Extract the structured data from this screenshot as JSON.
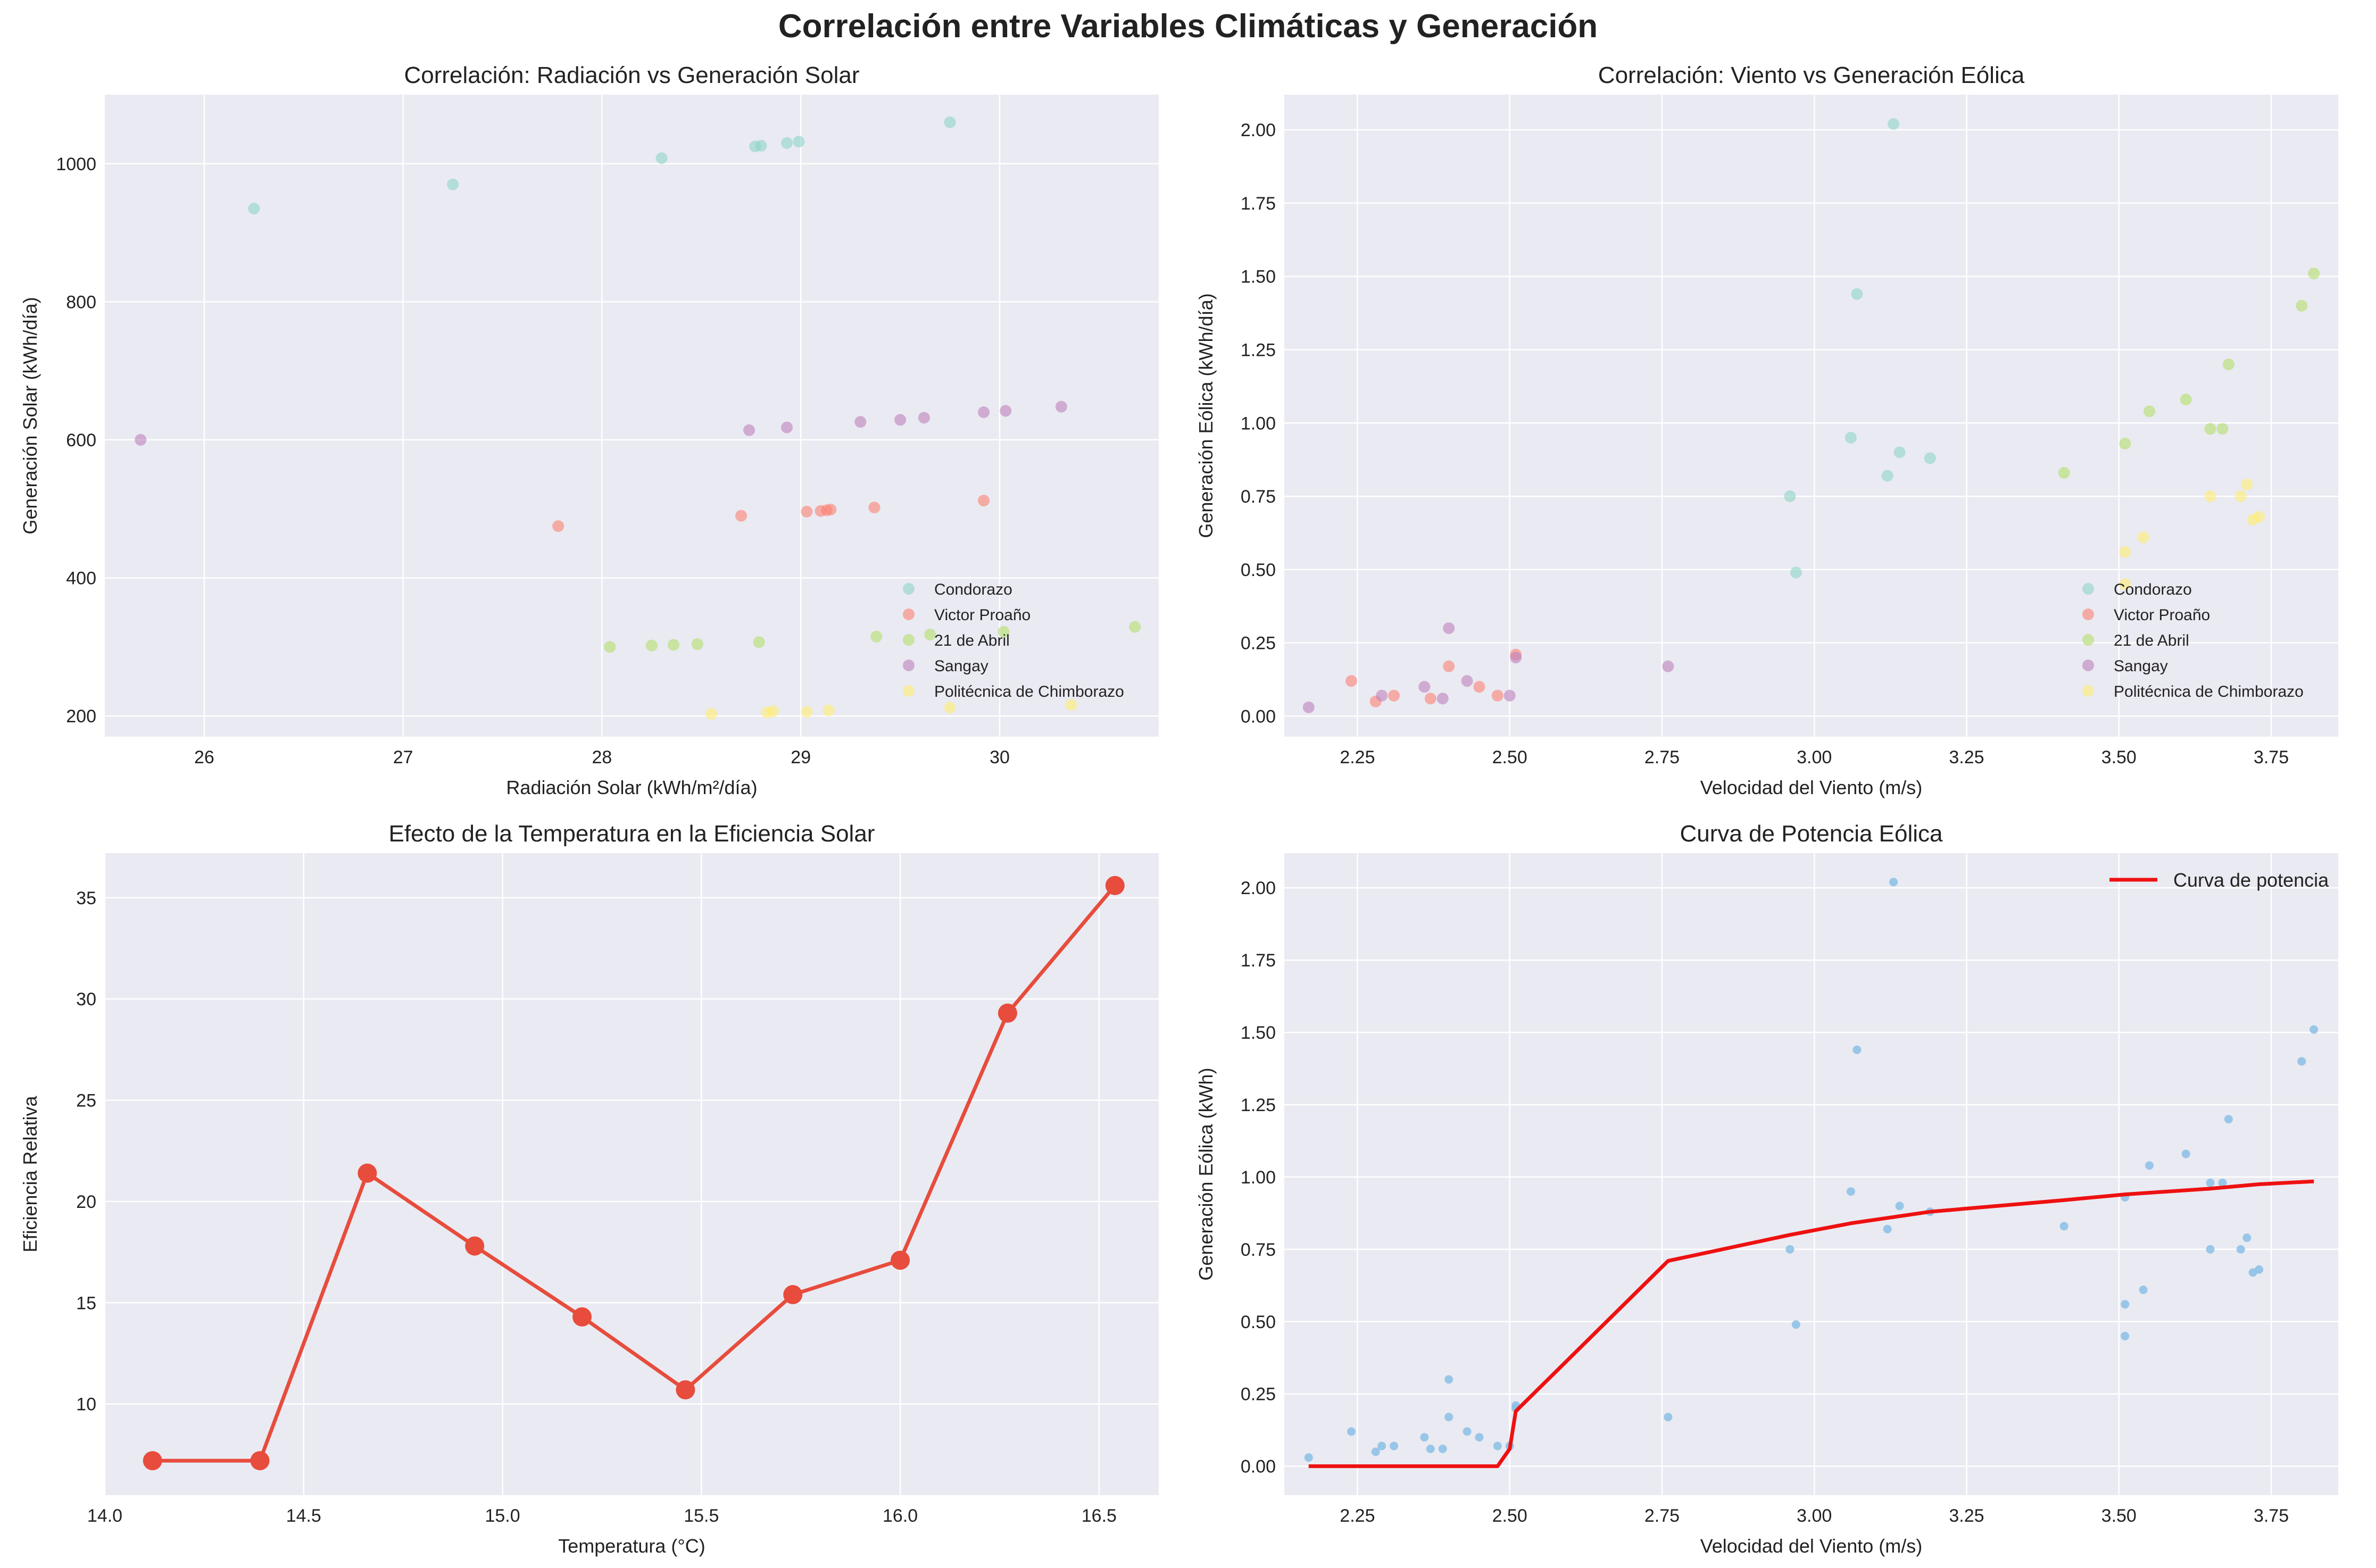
{
  "title": "Correlación entre Variables Climáticas y Generación",
  "colors": {
    "panel_bg": "#eaeaf2",
    "grid": "#ffffff",
    "text": "#222222",
    "Condorazo": "#8dd3c7",
    "Victor Proaño": "#fb8072",
    "21 de Abril": "#b3de69",
    "Sangay": "#bc80bd",
    "Politécnica de Chimborazo": "#ffed6f",
    "efficiency_line": "#e74c3c",
    "power_curve": "#ee1111",
    "scatter_blue": "#89bfe6"
  },
  "chart_data": [
    {
      "type": "scatter",
      "title": "Correlación: Radiación vs Generación Solar",
      "xlabel": "Radiación Solar (kWh/m²/día)",
      "ylabel": "Generación Solar (kWh/día)",
      "xlim": [
        25.5,
        30.8
      ],
      "ylim": [
        170,
        1100
      ],
      "xticks": [
        26,
        27,
        28,
        29,
        30
      ],
      "yticks": [
        200,
        400,
        600,
        800,
        1000
      ],
      "xtick_labels": [
        "26",
        "27",
        "28",
        "29",
        "30"
      ],
      "ytick_labels": [
        "200",
        "400",
        "600",
        "800",
        "1000"
      ],
      "grid": true,
      "legend_position": "bottom-right",
      "series": [
        {
          "name": "Condorazo",
          "x": [
            26.25,
            27.25,
            28.3,
            28.77,
            28.8,
            28.93,
            28.99,
            29.75
          ],
          "y": [
            935,
            970,
            1008,
            1025,
            1026,
            1030,
            1032,
            1060
          ]
        },
        {
          "name": "Victor Proaño",
          "x": [
            27.78,
            28.7,
            29.03,
            29.1,
            29.13,
            29.15,
            29.37,
            29.92
          ],
          "y": [
            475,
            490,
            496,
            497,
            498,
            499,
            502,
            512
          ]
        },
        {
          "name": "21 de Abril",
          "x": [
            28.04,
            28.25,
            28.36,
            28.48,
            28.79,
            29.38,
            29.65,
            30.02,
            30.68
          ],
          "y": [
            300,
            302,
            303,
            304,
            307,
            315,
            318,
            322,
            329
          ]
        },
        {
          "name": "Sangay",
          "x": [
            25.68,
            28.74,
            28.93,
            29.3,
            29.5,
            29.62,
            29.92,
            30.03,
            30.31
          ],
          "y": [
            600,
            614,
            618,
            626,
            629,
            632,
            640,
            642,
            648
          ]
        },
        {
          "name": "Politécnica de Chimborazo",
          "x": [
            28.55,
            28.83,
            28.86,
            29.03,
            29.14,
            29.75,
            30.36
          ],
          "y": [
            203,
            205,
            207,
            206,
            208,
            212,
            216
          ]
        }
      ]
    },
    {
      "type": "scatter",
      "title": "Correlación: Viento vs Generación Eólica",
      "xlabel": "Velocidad del Viento (m/s)",
      "ylabel": "Generación Eólica (kWh/día)",
      "xlim": [
        2.13,
        3.86
      ],
      "ylim": [
        -0.07,
        2.12
      ],
      "xticks": [
        2.25,
        2.5,
        2.75,
        3.0,
        3.25,
        3.5,
        3.75
      ],
      "yticks": [
        0.0,
        0.25,
        0.5,
        0.75,
        1.0,
        1.25,
        1.5,
        1.75,
        2.0
      ],
      "xtick_labels": [
        "2.25",
        "2.50",
        "2.75",
        "3.00",
        "3.25",
        "3.50",
        "3.75"
      ],
      "ytick_labels": [
        "0.00",
        "0.25",
        "0.50",
        "0.75",
        "1.00",
        "1.25",
        "1.50",
        "1.75",
        "2.00"
      ],
      "grid": true,
      "legend_position": "bottom-right",
      "series": [
        {
          "name": "Condorazo",
          "x": [
            2.96,
            2.97,
            3.06,
            3.07,
            3.12,
            3.13,
            3.14,
            3.19
          ],
          "y": [
            0.75,
            0.49,
            0.95,
            1.44,
            0.82,
            2.02,
            0.9,
            0.88
          ]
        },
        {
          "name": "Victor Proaño",
          "x": [
            2.24,
            2.28,
            2.31,
            2.37,
            2.4,
            2.45,
            2.48,
            2.51
          ],
          "y": [
            0.12,
            0.05,
            0.07,
            0.06,
            0.17,
            0.1,
            0.07,
            0.21
          ]
        },
        {
          "name": "21 de Abril",
          "x": [
            3.41,
            3.51,
            3.55,
            3.61,
            3.65,
            3.67,
            3.68,
            3.8,
            3.82
          ],
          "y": [
            0.83,
            0.93,
            1.04,
            1.08,
            0.98,
            0.98,
            1.2,
            1.4,
            1.51
          ]
        },
        {
          "name": "Sangay",
          "x": [
            2.17,
            2.29,
            2.36,
            2.39,
            2.4,
            2.43,
            2.5,
            2.51,
            2.76
          ],
          "y": [
            0.03,
            0.07,
            0.1,
            0.06,
            0.3,
            0.12,
            0.07,
            0.2,
            0.17
          ]
        },
        {
          "name": "Politécnica de Chimborazo",
          "x": [
            3.51,
            3.51,
            3.54,
            3.65,
            3.7,
            3.71,
            3.72,
            3.73
          ],
          "y": [
            0.45,
            0.56,
            0.61,
            0.75,
            0.75,
            0.79,
            0.67,
            0.68
          ]
        }
      ]
    },
    {
      "type": "line",
      "title": "Efecto de la Temperatura en la Eficiencia Solar",
      "xlabel": "Temperatura (°C)",
      "ylabel": "Eficiencia Relativa",
      "xlim": [
        14.0,
        16.65
      ],
      "ylim": [
        5.5,
        37.2
      ],
      "xticks": [
        14.0,
        14.5,
        15.0,
        15.5,
        16.0,
        16.5
      ],
      "yticks": [
        10,
        15,
        20,
        25,
        30,
        35
      ],
      "xtick_labels": [
        "14.0",
        "14.5",
        "15.0",
        "15.5",
        "16.0",
        "16.5"
      ],
      "ytick_labels": [
        "10",
        "15",
        "20",
        "25",
        "30",
        "35"
      ],
      "grid": true,
      "x": [
        14.12,
        14.39,
        14.66,
        14.93,
        15.2,
        15.46,
        15.73,
        16.0,
        16.27,
        16.54
      ],
      "y": [
        7.2,
        7.2,
        21.4,
        17.8,
        14.3,
        10.7,
        15.4,
        17.1,
        29.3,
        35.6
      ]
    },
    {
      "type": "scatter",
      "title": "Curva de Potencia Eólica",
      "xlabel": "Velocidad del Viento (m/s)",
      "ylabel": "Generación Eólica (kWh)",
      "xlim": [
        2.13,
        3.86
      ],
      "ylim": [
        -0.1,
        2.12
      ],
      "xticks": [
        2.25,
        2.5,
        2.75,
        3.0,
        3.25,
        3.5,
        3.75
      ],
      "yticks": [
        0.0,
        0.25,
        0.5,
        0.75,
        1.0,
        1.25,
        1.5,
        1.75,
        2.0
      ],
      "xtick_labels": [
        "2.25",
        "2.50",
        "2.75",
        "3.00",
        "3.25",
        "3.50",
        "3.75"
      ],
      "ytick_labels": [
        "0.00",
        "0.25",
        "0.50",
        "0.75",
        "1.00",
        "1.25",
        "1.50",
        "1.75",
        "2.00"
      ],
      "grid": true,
      "legend_position": "top-right",
      "points": {
        "x": [
          2.17,
          2.24,
          2.28,
          2.29,
          2.31,
          2.36,
          2.37,
          2.39,
          2.4,
          2.4,
          2.43,
          2.45,
          2.48,
          2.5,
          2.51,
          2.51,
          2.76,
          2.96,
          2.97,
          3.06,
          3.07,
          3.12,
          3.13,
          3.14,
          3.19,
          3.41,
          3.51,
          3.51,
          3.51,
          3.54,
          3.55,
          3.61,
          3.65,
          3.65,
          3.67,
          3.68,
          3.7,
          3.71,
          3.72,
          3.73,
          3.8,
          3.82
        ],
        "y": [
          0.03,
          0.12,
          0.05,
          0.07,
          0.07,
          0.1,
          0.06,
          0.06,
          0.3,
          0.17,
          0.12,
          0.1,
          0.07,
          0.07,
          0.2,
          0.21,
          0.17,
          0.75,
          0.49,
          0.95,
          1.44,
          0.82,
          2.02,
          0.9,
          0.88,
          0.83,
          0.93,
          0.45,
          0.56,
          0.61,
          1.04,
          1.08,
          0.98,
          0.75,
          0.98,
          1.2,
          0.75,
          0.79,
          0.67,
          0.68,
          1.4,
          1.51
        ]
      },
      "series": [
        {
          "name": "Curva de potencia",
          "type": "line",
          "x": [
            2.17,
            2.48,
            2.5,
            2.51,
            2.76,
            2.96,
            3.06,
            3.19,
            3.41,
            3.51,
            3.65,
            3.73,
            3.82
          ],
          "y": [
            0.0,
            0.0,
            0.06,
            0.19,
            0.71,
            0.8,
            0.84,
            0.88,
            0.92,
            0.94,
            0.96,
            0.975,
            0.985
          ]
        }
      ]
    }
  ]
}
